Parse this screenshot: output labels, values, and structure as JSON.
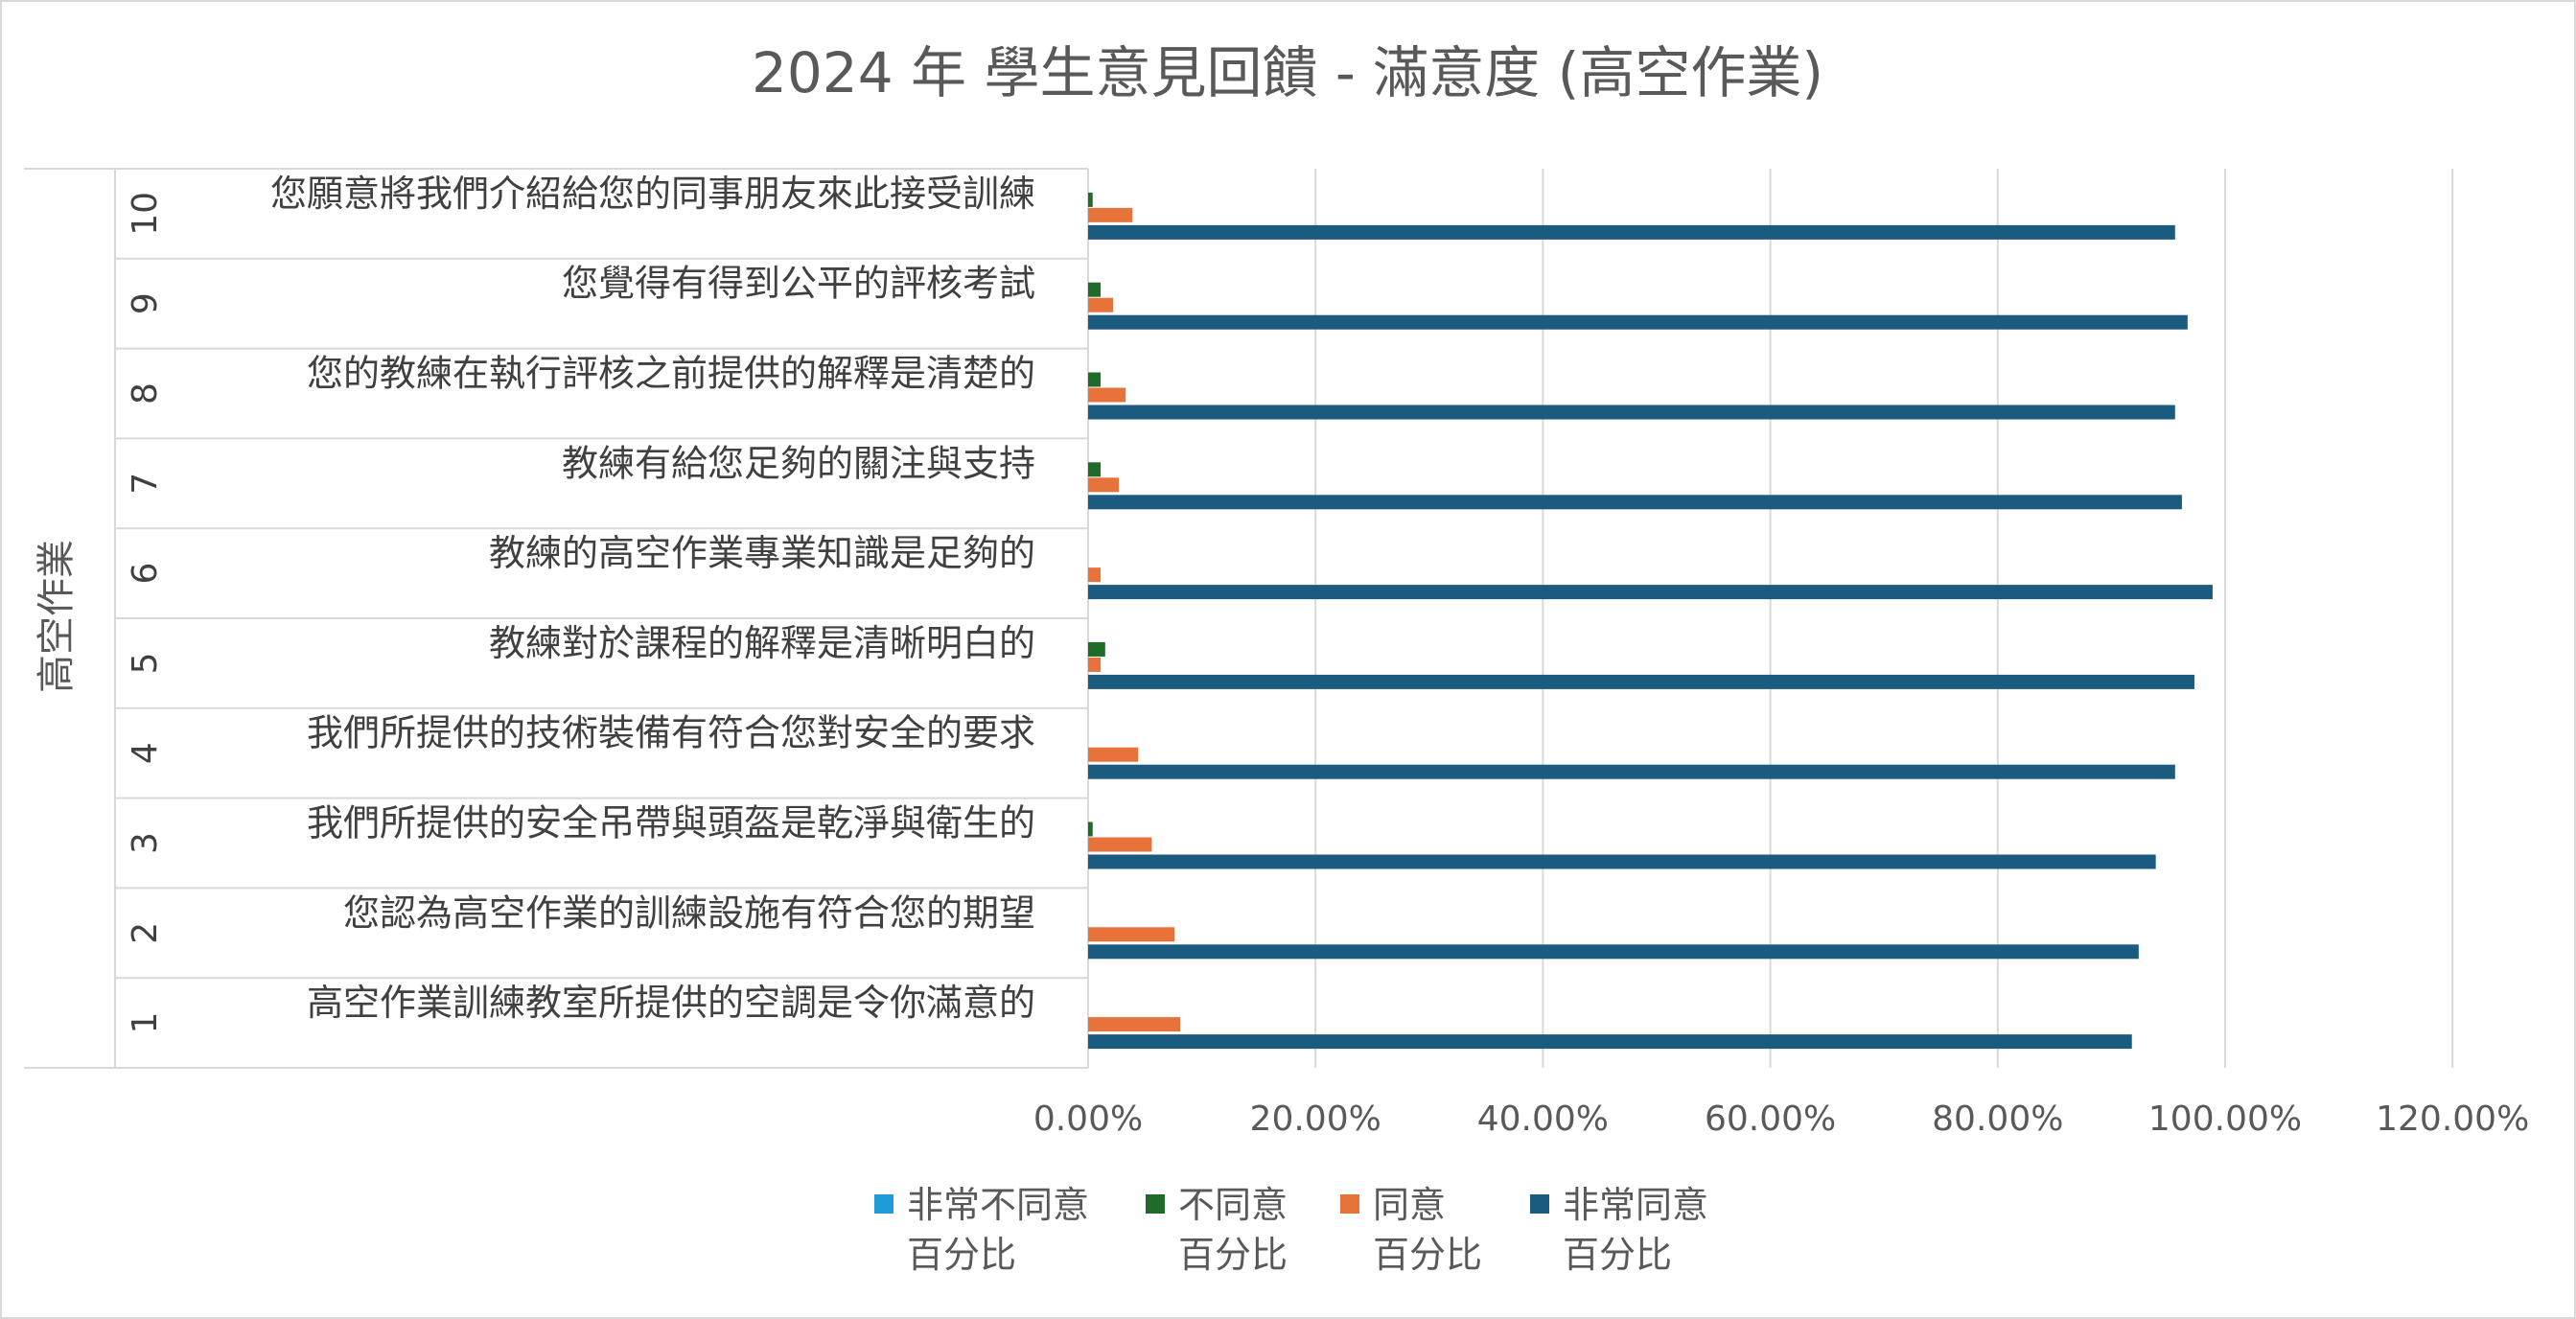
{
  "chart_data": {
    "type": "bar",
    "orientation": "horizontal",
    "title": "2024 年 學生意見回饋 - 滿意度 (高空作業)",
    "group_axis_label": "高空作業",
    "categories": [
      {
        "num": "1",
        "label": "高空作業訓練教室所提供的空調是令你滿意的"
      },
      {
        "num": "2",
        "label": "您認為高空作業的訓練設施有符合您的期望"
      },
      {
        "num": "3",
        "label": "我們所提供的安全吊帶與頭盔是乾淨與衛生的"
      },
      {
        "num": "4",
        "label": "我們所提供的技術裝備有符合您對安全的要求"
      },
      {
        "num": "5",
        "label": "教練對於課程的解釋是清晰明白的"
      },
      {
        "num": "6",
        "label": "教練的高空作業專業知識是足夠的"
      },
      {
        "num": "7",
        "label": "教練有給您足夠的關注與支持"
      },
      {
        "num": "8",
        "label": "您的教練在執行評核之前提供的解釋是清楚的"
      },
      {
        "num": "9",
        "label": "您覺得有得到公平的評核考試"
      },
      {
        "num": "10",
        "label": "您願意將我們介紹給您的同事朋友來此接受訓練"
      }
    ],
    "series": [
      {
        "name": "非常不同意百分比",
        "legend_lines": [
          "非常不同意",
          "百分比"
        ],
        "color": "#1f9bd7",
        "values": [
          0,
          0,
          0,
          0,
          0,
          0,
          0,
          0,
          0,
          0
        ]
      },
      {
        "name": "不同意百分比",
        "legend_lines": [
          "不同意",
          "百分比"
        ],
        "color": "#1e6b2a",
        "values": [
          0,
          0,
          0.4,
          0,
          1.5,
          0,
          1.1,
          1.1,
          1.1,
          0.4
        ]
      },
      {
        "name": "同意百分比",
        "legend_lines": [
          "同意",
          "百分比"
        ],
        "color": "#e8733a",
        "values": [
          8.1,
          7.6,
          5.6,
          4.4,
          1.1,
          1.1,
          2.7,
          3.3,
          2.2,
          3.9
        ]
      },
      {
        "name": "非常同意百分比",
        "legend_lines": [
          "非常同意",
          "百分比"
        ],
        "color": "#1c5b80",
        "values": [
          91.8,
          92.4,
          93.9,
          95.6,
          97.3,
          98.9,
          96.2,
          95.6,
          96.7,
          95.6
        ]
      }
    ],
    "x_ticks": [
      "0.00%",
      "20.00%",
      "40.00%",
      "60.00%",
      "80.00%",
      "100.00%",
      "120.00%"
    ],
    "xlim": [
      0,
      120
    ],
    "grid": true,
    "legend_position": "bottom"
  }
}
